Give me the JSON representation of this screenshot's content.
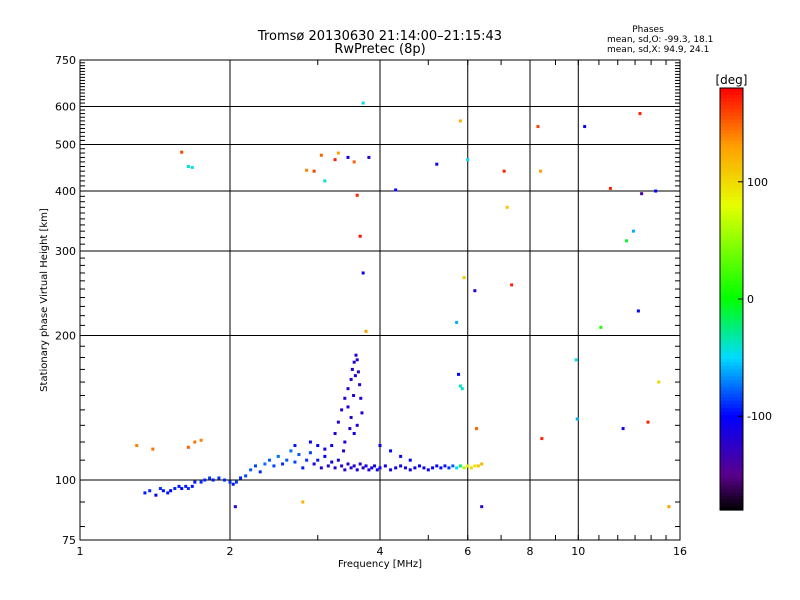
{
  "chart_data": {
    "type": "scatter",
    "title": "Tromsø 20130630 21:14:00–21:15:43",
    "subtitle": "RwPretec (8p)",
    "phases_box": {
      "title": "Phases",
      "line1": "mean, sd,O: -99.3, 18.1",
      "line2": "mean, sd,X:  94.9, 24.1"
    },
    "xlabel": "Frequency [MHz]",
    "ylabel": "Stationary phase Virtual Height [km]",
    "x_scale": "log",
    "y_scale": "log",
    "xlim": [
      1,
      16
    ],
    "ylim": [
      75,
      750
    ],
    "x_ticks": [
      1,
      2,
      4,
      6,
      8,
      10,
      16
    ],
    "x_tick_labels": [
      "1",
      "2",
      "4",
      "6",
      "8",
      "10",
      "16"
    ],
    "y_ticks": [
      75,
      100,
      200,
      300,
      400,
      500,
      600,
      750
    ],
    "y_tick_labels": [
      "75",
      "100",
      "200",
      "300",
      "400",
      "500",
      "600",
      "750"
    ],
    "grid": true,
    "colorbar": {
      "label": "[deg]",
      "range": [
        -180,
        180
      ],
      "ticks": [
        100,
        0,
        -100
      ],
      "tick_labels": [
        "100",
        "0",
        "-100"
      ]
    },
    "series": [
      {
        "values": [
          [
            1.35,
            94,
            -95
          ],
          [
            1.38,
            95,
            -92
          ],
          [
            1.42,
            93,
            -100
          ],
          [
            1.45,
            96,
            -90
          ],
          [
            1.47,
            95,
            -98
          ],
          [
            1.5,
            94,
            -95
          ],
          [
            1.52,
            95,
            -100
          ],
          [
            1.55,
            96,
            -92
          ],
          [
            1.58,
            97,
            -96
          ],
          [
            1.6,
            96,
            -98
          ],
          [
            1.63,
            97,
            -94
          ],
          [
            1.65,
            96,
            -90
          ],
          [
            1.68,
            97,
            -96
          ],
          [
            1.7,
            99,
            -94
          ],
          [
            1.75,
            99,
            -90
          ],
          [
            1.78,
            100,
            -92
          ],
          [
            1.82,
            101,
            -88
          ],
          [
            1.85,
            100,
            -95
          ],
          [
            1.9,
            101,
            -90
          ],
          [
            1.95,
            100,
            -92
          ],
          [
            2.0,
            99,
            -90
          ],
          [
            2.03,
            98,
            -95
          ],
          [
            2.06,
            99,
            -88
          ],
          [
            2.1,
            101,
            -92
          ],
          [
            2.15,
            102,
            -85
          ],
          [
            2.2,
            105,
            -80
          ],
          [
            2.25,
            107,
            -85
          ],
          [
            2.3,
            104,
            -90
          ],
          [
            2.35,
            108,
            -75
          ],
          [
            2.4,
            110,
            -80
          ],
          [
            2.45,
            107,
            -85
          ],
          [
            2.5,
            112,
            -75
          ],
          [
            2.55,
            108,
            -90
          ],
          [
            2.6,
            110,
            -80
          ],
          [
            2.65,
            115,
            -75
          ],
          [
            2.7,
            109,
            -85
          ],
          [
            2.75,
            113,
            -80
          ],
          [
            2.8,
            106,
            -95
          ],
          [
            2.85,
            110,
            -90
          ],
          [
            2.9,
            114,
            -85
          ],
          [
            2.95,
            108,
            -110
          ],
          [
            3.0,
            110,
            -95
          ],
          [
            3.05,
            106,
            -115
          ],
          [
            3.1,
            112,
            -100
          ],
          [
            3.15,
            107,
            -120
          ],
          [
            3.2,
            109,
            -110
          ],
          [
            3.25,
            106,
            -118
          ],
          [
            3.3,
            110,
            -112
          ],
          [
            3.35,
            107,
            -125
          ],
          [
            3.4,
            105,
            -120
          ],
          [
            3.45,
            108,
            -118
          ],
          [
            3.5,
            106,
            -125
          ],
          [
            3.55,
            107,
            -120
          ],
          [
            3.6,
            105,
            -115
          ],
          [
            3.65,
            108,
            -122
          ],
          [
            3.7,
            106,
            -118
          ],
          [
            3.75,
            107,
            -110
          ],
          [
            3.8,
            105,
            -115
          ],
          [
            3.85,
            106,
            -112
          ],
          [
            3.9,
            107,
            -110
          ],
          [
            3.95,
            105,
            -115
          ],
          [
            4.0,
            106,
            -108
          ],
          [
            4.1,
            107,
            -112
          ],
          [
            4.2,
            105,
            -110
          ],
          [
            4.3,
            106,
            -108
          ],
          [
            4.4,
            107,
            -105
          ],
          [
            4.5,
            106,
            -110
          ],
          [
            4.6,
            105,
            -108
          ],
          [
            4.7,
            106,
            -105
          ],
          [
            4.8,
            107,
            -102
          ],
          [
            4.9,
            106,
            -105
          ],
          [
            5.0,
            105,
            -108
          ],
          [
            5.1,
            106,
            -100
          ],
          [
            5.2,
            107,
            -105
          ],
          [
            5.3,
            106,
            -98
          ],
          [
            5.4,
            107,
            -95
          ],
          [
            5.5,
            106,
            -90
          ],
          [
            5.6,
            107,
            -80
          ],
          [
            5.7,
            106,
            -50
          ],
          [
            5.8,
            107,
            -20
          ],
          [
            5.9,
            106,
            60
          ],
          [
            6.0,
            107,
            90
          ],
          [
            6.1,
            106,
            100
          ],
          [
            6.2,
            107,
            95
          ],
          [
            6.3,
            107,
            110
          ],
          [
            6.4,
            108,
            120
          ],
          [
            3.2,
            118,
            -110
          ],
          [
            3.25,
            125,
            -115
          ],
          [
            3.3,
            132,
            -120
          ],
          [
            3.35,
            140,
            -118
          ],
          [
            3.4,
            148,
            -122
          ],
          [
            3.45,
            155,
            -120
          ],
          [
            3.5,
            162,
            -118
          ],
          [
            3.52,
            170,
            -115
          ],
          [
            3.55,
            176,
            -120
          ],
          [
            3.58,
            182,
            -118
          ],
          [
            3.6,
            178,
            -115
          ],
          [
            3.62,
            168,
            -122
          ],
          [
            3.64,
            158,
            -120
          ],
          [
            3.66,
            148,
            -118
          ],
          [
            3.68,
            138,
            -115
          ],
          [
            3.6,
            130,
            -118
          ],
          [
            3.55,
            125,
            -112
          ],
          [
            3.5,
            135,
            -120
          ],
          [
            3.45,
            142,
            -118
          ],
          [
            3.4,
            120,
            -115
          ],
          [
            3.38,
            115,
            -118
          ],
          [
            3.48,
            128,
            -120
          ],
          [
            3.57,
            165,
            -112
          ],
          [
            3.54,
            150,
            -120
          ],
          [
            2.9,
            120,
            -105
          ],
          [
            3.0,
            118,
            -100
          ],
          [
            3.1,
            116,
            -110
          ],
          [
            4.2,
            115,
            -100
          ],
          [
            4.4,
            112,
            -105
          ],
          [
            4.6,
            110,
            -100
          ],
          [
            4.0,
            118,
            -105
          ],
          [
            2.7,
            118,
            -95
          ],
          [
            1.3,
            118,
            140
          ],
          [
            1.4,
            116,
            145
          ],
          [
            1.65,
            117,
            150
          ],
          [
            1.7,
            120,
            145
          ],
          [
            1.75,
            121,
            140
          ],
          [
            2.8,
            90,
            120
          ],
          [
            1.6,
            482,
            160
          ],
          [
            1.65,
            450,
            -40
          ],
          [
            1.68,
            448,
            -45
          ],
          [
            2.85,
            442,
            140
          ],
          [
            2.95,
            440,
            160
          ],
          [
            3.05,
            475,
            150
          ],
          [
            3.1,
            420,
            -40
          ],
          [
            3.25,
            465,
            170
          ],
          [
            3.3,
            480,
            130
          ],
          [
            3.45,
            470,
            -110
          ],
          [
            3.55,
            460,
            150
          ],
          [
            3.6,
            392,
            170
          ],
          [
            3.65,
            322,
            175
          ],
          [
            3.7,
            270,
            -105
          ],
          [
            3.75,
            204,
            130
          ],
          [
            3.8,
            470,
            -120
          ],
          [
            3.7,
            610,
            -50
          ],
          [
            4.3,
            402,
            -100
          ],
          [
            5.2,
            455,
            -110
          ],
          [
            5.8,
            560,
            120
          ],
          [
            5.9,
            264,
            110
          ],
          [
            6.0,
            465,
            -50
          ],
          [
            6.2,
            248,
            -120
          ],
          [
            6.4,
            88,
            -120
          ],
          [
            5.7,
            213,
            -60
          ],
          [
            5.75,
            166,
            -100
          ],
          [
            5.8,
            157,
            -40
          ],
          [
            5.85,
            155,
            -40
          ],
          [
            6.25,
            128,
            150
          ],
          [
            7.1,
            440,
            170
          ],
          [
            7.2,
            370,
            110
          ],
          [
            7.35,
            255,
            170
          ],
          [
            8.3,
            545,
            160
          ],
          [
            8.4,
            440,
            130
          ],
          [
            8.45,
            122,
            170
          ],
          [
            9.9,
            178,
            -50
          ],
          [
            9.95,
            134,
            -60
          ],
          [
            10.3,
            545,
            -110
          ],
          [
            11.1,
            208,
            10
          ],
          [
            11.6,
            405,
            170
          ],
          [
            12.5,
            315,
            -10
          ],
          [
            12.9,
            330,
            -60
          ],
          [
            13.2,
            225,
            -100
          ],
          [
            13.3,
            580,
            170
          ],
          [
            13.4,
            395,
            -140
          ],
          [
            13.8,
            132,
            170
          ],
          [
            14.3,
            400,
            -100
          ],
          [
            14.5,
            160,
            100
          ],
          [
            15.2,
            88,
            130
          ],
          [
            2.05,
            88,
            -120
          ],
          [
            12.3,
            128,
            -110
          ]
        ]
      }
    ]
  }
}
